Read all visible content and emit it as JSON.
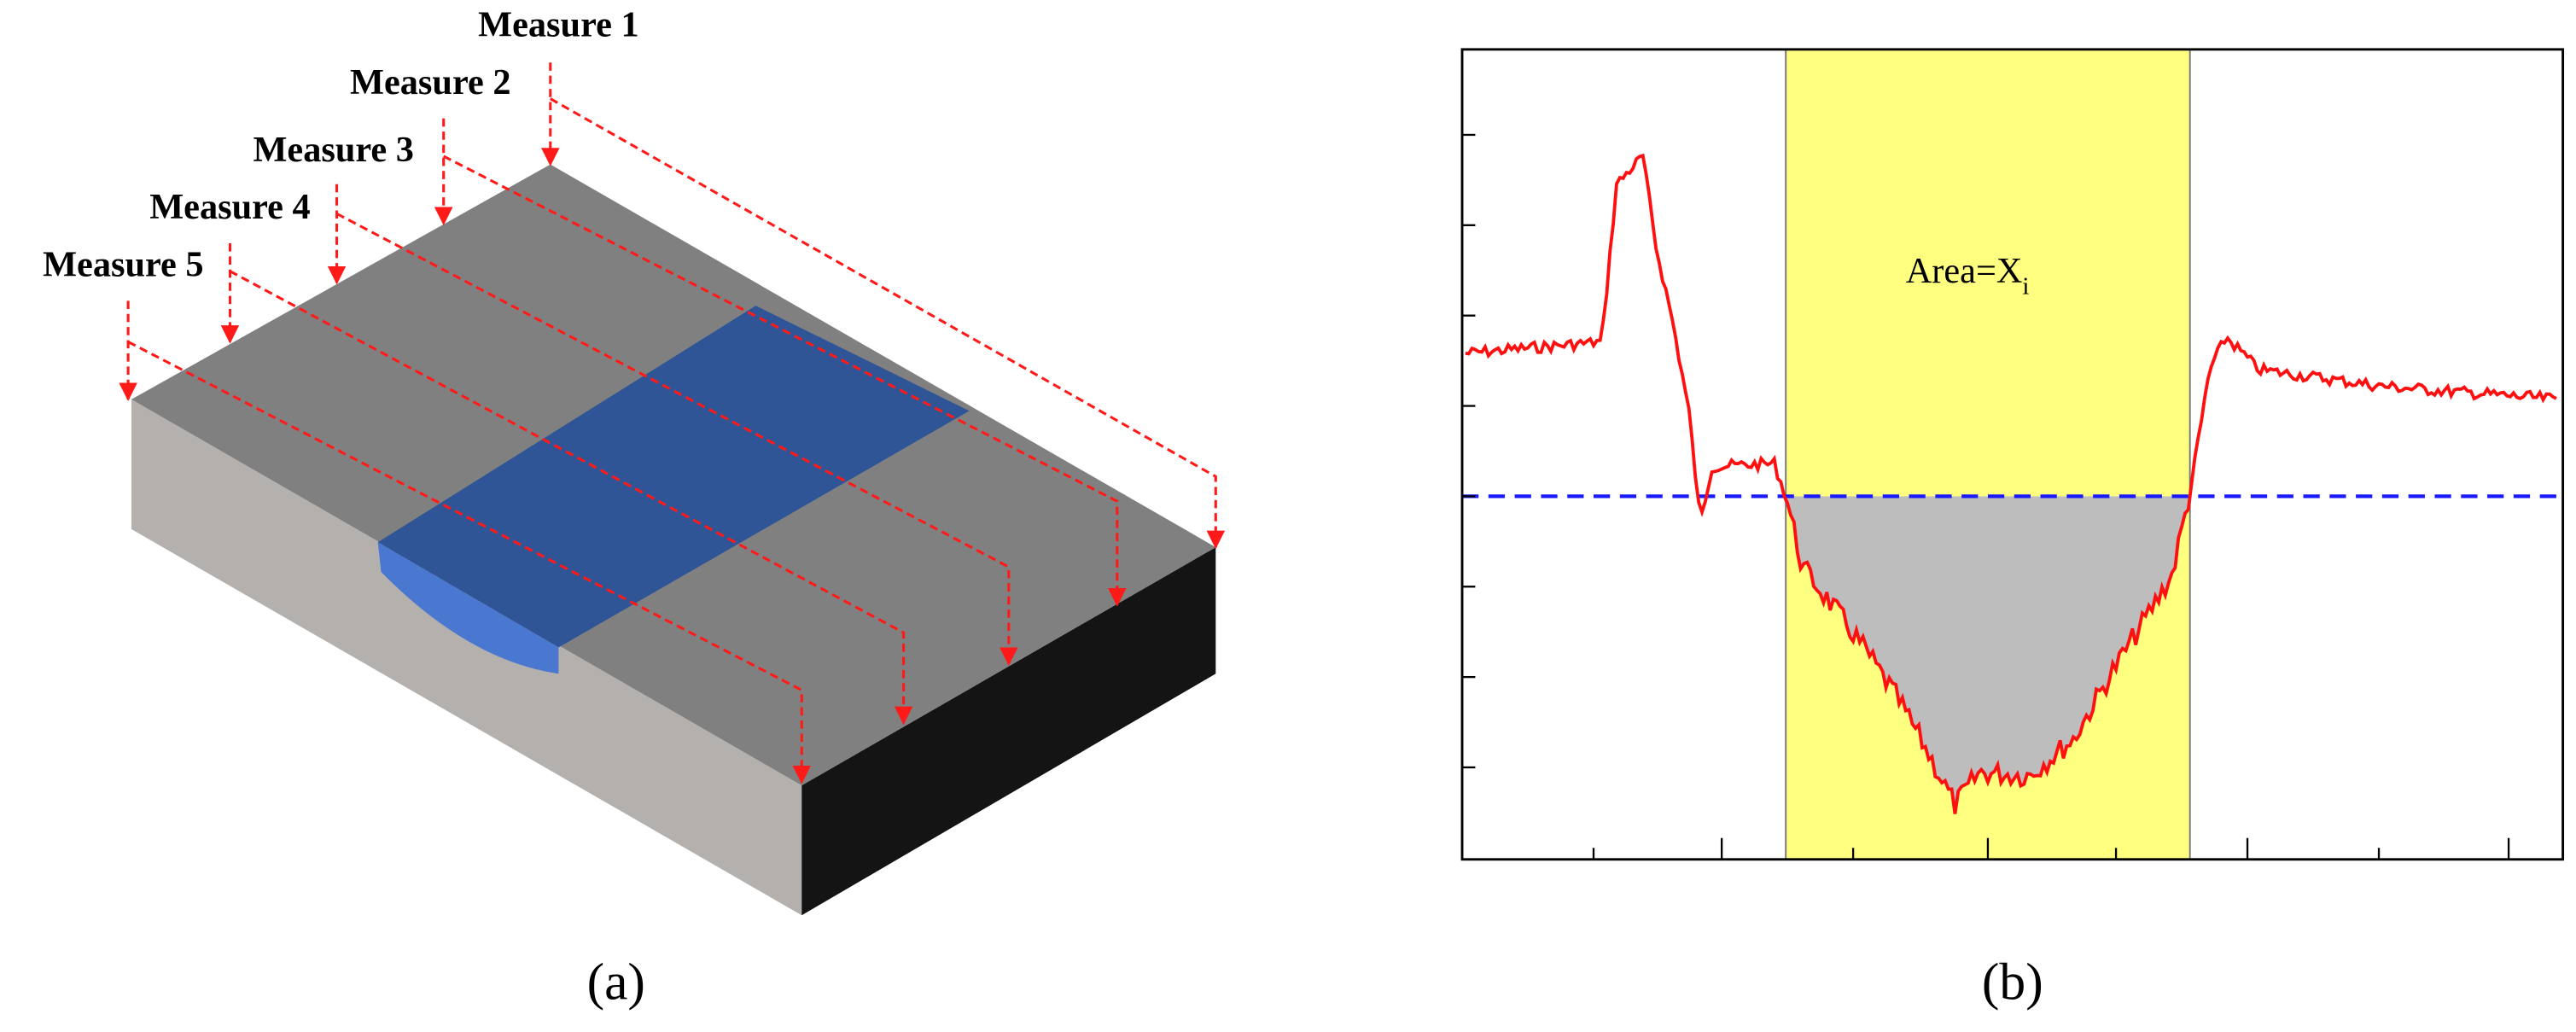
{
  "panel_a": {
    "labels": [
      "Measure 1",
      "Measure 2",
      "Measure 3",
      "Measure 4",
      "Measure 5"
    ],
    "caption": "(a)"
  },
  "panel_b": {
    "annotation": "Area=X",
    "annotation_subscript": "i",
    "caption": "(b)"
  }
}
